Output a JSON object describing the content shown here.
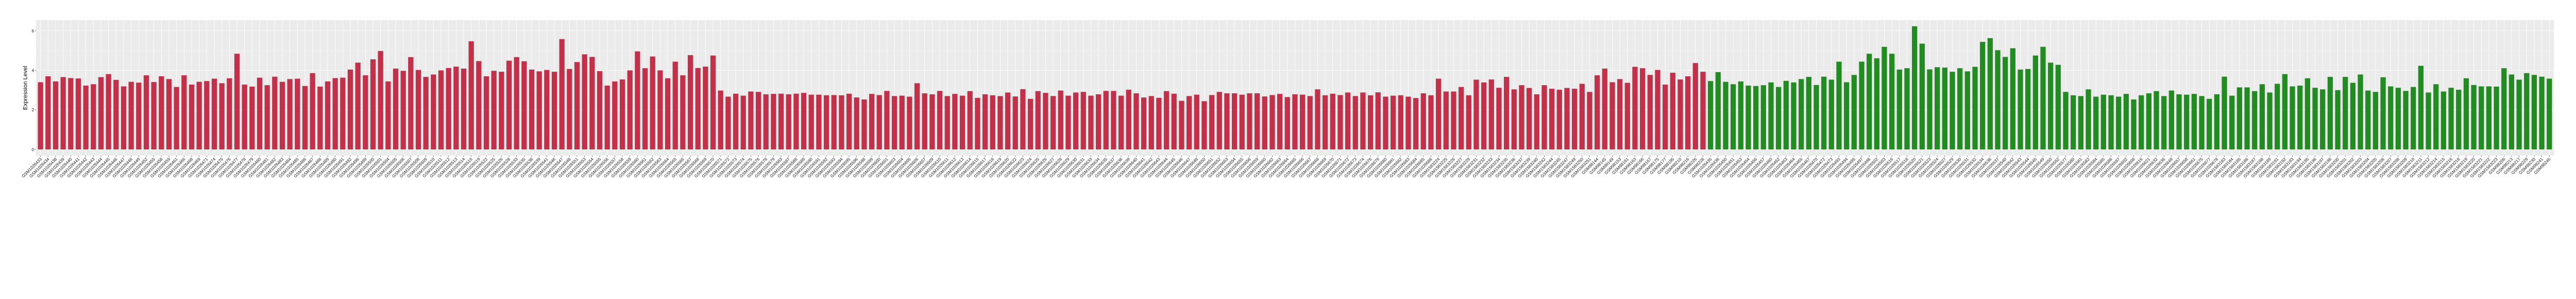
{
  "chart_data": {
    "type": "bar",
    "title": "",
    "xlabel": "",
    "ylabel": "Expression Level",
    "ylim": [
      -0.31,
      6.54
    ],
    "yticks": [
      0,
      2,
      4,
      6
    ],
    "grid": true,
    "legend": "none",
    "background": "#EBEBEB",
    "series": [
      {
        "color": "#C3304A",
        "categories": [
          "GSM1026433",
          "GSM1026434",
          "GSM1026438",
          "GSM1026439",
          "GSM1026440",
          "GSM1026441",
          "GSM1026442",
          "GSM1026443",
          "GSM1026444",
          "GSM1026445",
          "GSM1026446",
          "GSM1026447",
          "GSM1026448",
          "GSM1026449",
          "GSM1026452",
          "GSM1026455",
          "GSM1026458",
          "GSM1026459",
          "GSM1026461",
          "GSM1026466",
          "GSM1026468",
          "GSM1026469",
          "GSM1026471",
          "GSM1026474",
          "GSM1026475",
          "GSM1026476",
          "GSM1026477",
          "GSM1026478",
          "GSM1026479",
          "GSM1026480",
          "GSM1026481",
          "GSM1026482",
          "GSM1026483",
          "GSM1026484",
          "GSM1026485",
          "GSM1026486",
          "GSM1026487",
          "GSM1026488",
          "GSM1026489",
          "GSM1026490",
          "GSM1026491",
          "GSM1026492",
          "GSM1026496",
          "GSM1026499",
          "GSM1026500",
          "GSM1026501",
          "GSM1026504",
          "GSM1026505",
          "GSM1026506",
          "GSM1026507",
          "GSM1026508",
          "GSM1026509",
          "GSM1026510",
          "GSM1026511",
          "GSM1026512",
          "GSM1026513",
          "GSM1026514",
          "GSM1026515",
          "GSM1026519",
          "GSM1026522",
          "GSM1026525",
          "GSM1026526",
          "GSM1026528",
          "GSM1026533",
          "GSM1026535",
          "GSM1026538",
          "GSM1026539",
          "GSM1026541",
          "GSM1026546",
          "GSM1026547",
          "GSM1026548",
          "GSM1026551",
          "GSM1026553",
          "GSM1026554",
          "GSM1026555",
          "GSM1026556",
          "GSM1026557",
          "GSM1026558",
          "GSM1026559",
          "GSM1026560",
          "GSM1026561",
          "GSM1026562",
          "GSM1026563",
          "GSM1026564",
          "GSM1026565",
          "GSM1026566",
          "GSM1026567",
          "GSM1026568",
          "GSM1026569",
          "GSM1026570",
          "GSM1026571",
          "GSM1026572",
          "GSM1026573",
          "GSM1026574",
          "GSM1026575",
          "GSM1026576",
          "GSM1026578",
          "GSM1026579",
          "GSM1026583",
          "GSM1026587",
          "GSM1026588",
          "GSM1026589",
          "GSM1026590",
          "GSM1026591",
          "GSM1026592",
          "GSM1026593",
          "GSM1026594",
          "GSM1026595",
          "GSM1026596",
          "GSM1026598",
          "GSM1026599",
          "GSM1026600",
          "GSM1026601",
          "GSM1026603",
          "GSM1026604",
          "GSM1026605",
          "GSM1026606",
          "GSM1026607",
          "GSM1026609",
          "GSM1026610",
          "GSM1026611",
          "GSM1026612",
          "GSM1026613",
          "GSM1026614",
          "GSM1026615",
          "GSM1026617",
          "GSM1026618",
          "GSM1026619",
          "GSM1026620",
          "GSM1026622",
          "GSM1026623",
          "GSM1026624",
          "GSM1026625",
          "GSM1026626",
          "GSM1026627",
          "GSM1026628",
          "GSM1026629",
          "GSM1026630",
          "GSM1026631",
          "GSM1026633",
          "GSM1026634",
          "GSM1026635",
          "GSM1026637",
          "GSM1026638",
          "GSM1026639",
          "GSM1026640",
          "GSM1026641",
          "GSM1026642",
          "GSM1026643",
          "GSM1026644",
          "GSM1026645",
          "GSM1026646",
          "GSM1026647",
          "GSM1026648",
          "GSM1026650",
          "GSM1026651",
          "GSM1026652",
          "GSM1026653",
          "GSM1026654",
          "GSM1026655",
          "GSM1026656",
          "GSM1026659",
          "GSM1026660",
          "GSM1026662",
          "GSM1026663",
          "GSM1026664",
          "GSM1026665",
          "GSM1026666",
          "GSM1026667",
          "GSM1026668",
          "GSM1026669",
          "GSM1026670",
          "GSM1026671",
          "GSM1026672",
          "GSM1026673",
          "GSM1026674",
          "GSM1026676",
          "GSM1026679",
          "GSM1026680",
          "GSM1026681",
          "GSM1026682",
          "GSM1026683",
          "GSM1026684",
          "GSM1026685",
          "GSM1026686",
          "GSM1583224",
          "GSM1583225",
          "GSM1583226",
          "GSM1583227",
          "GSM1583229",
          "GSM1583231",
          "GSM1583232",
          "GSM1583233",
          "GSM1583234",
          "GSM1583235",
          "GSM1583236",
          "GSM1583237",
          "GSM1583239",
          "GSM1583240",
          "GSM1583242",
          "GSM1583244",
          "GSM1583245",
          "GSM1583247",
          "GSM1583249",
          "GSM1583250",
          "GSM1583251",
          "GSM98144",
          "GSM98145",
          "GSM98149",
          "GSM98153",
          "GSM98161",
          "GSM98163",
          "GSM98166",
          "GSM98167",
          "GSM98175",
          "GSM98177",
          "GSM98195",
          "GSM98210",
          "GSM98216",
          "GSM98226",
          "GSM98228"
        ],
        "values": [
          3.4,
          3.7,
          3.44,
          3.66,
          3.61,
          3.59,
          3.23,
          3.3,
          3.66,
          3.81,
          3.52,
          3.19,
          3.42,
          3.38,
          3.75,
          3.41,
          3.7,
          3.56,
          3.16,
          3.75,
          3.28,
          3.42,
          3.46,
          3.58,
          3.35,
          3.6,
          4.84,
          3.28,
          3.18,
          3.63,
          3.25,
          3.68,
          3.42,
          3.56,
          3.58,
          3.21,
          3.86,
          3.18,
          3.44,
          3.61,
          3.63,
          4.04,
          4.39,
          3.75,
          4.56,
          4.98,
          3.44,
          4.09,
          3.98,
          4.67,
          4.02,
          3.67,
          3.79,
          4.0,
          4.12,
          4.19,
          4.09,
          5.47,
          4.47,
          3.7,
          3.98,
          3.93,
          4.49,
          4.67,
          4.46,
          4.04,
          3.95,
          4.02,
          3.93,
          5.58,
          4.07,
          4.42,
          4.81,
          4.68,
          3.96,
          3.23,
          3.44,
          3.54,
          4.0,
          4.96,
          4.11,
          4.7,
          4.0,
          3.6,
          4.44,
          3.75,
          4.77,
          4.12,
          4.19,
          4.75,
          2.98,
          2.67,
          2.82,
          2.72,
          2.93,
          2.91,
          2.79,
          2.81,
          2.82,
          2.79,
          2.82,
          2.86,
          2.77,
          2.77,
          2.74,
          2.75,
          2.74,
          2.82,
          2.63,
          2.53,
          2.81,
          2.75,
          2.96,
          2.7,
          2.72,
          2.67,
          3.35,
          2.84,
          2.79,
          2.96,
          2.7,
          2.81,
          2.72,
          2.95,
          2.61,
          2.79,
          2.74,
          2.7,
          2.88,
          2.68,
          3.05,
          2.56,
          2.95,
          2.86,
          2.7,
          2.98,
          2.72,
          2.88,
          2.91,
          2.72,
          2.79,
          2.96,
          2.96,
          2.72,
          3.02,
          2.84,
          2.63,
          2.7,
          2.61,
          2.95,
          2.82,
          2.46,
          2.7,
          2.77,
          2.44,
          2.75,
          2.91,
          2.84,
          2.84,
          2.77,
          2.84,
          2.84,
          2.68,
          2.75,
          2.81,
          2.65,
          2.79,
          2.77,
          2.7,
          3.04,
          2.74,
          2.82,
          2.75,
          2.88,
          2.7,
          2.88,
          2.74,
          2.89,
          2.67,
          2.72,
          2.74,
          2.67,
          2.6,
          2.84,
          2.74,
          3.58,
          2.93,
          2.93,
          3.16,
          2.74,
          3.53,
          3.39,
          3.54,
          3.12,
          3.67,
          3.04,
          3.25,
          3.11,
          2.79,
          3.25,
          3.07,
          3.02,
          3.11,
          3.07,
          3.32,
          2.91,
          3.75,
          4.09,
          3.4,
          3.56,
          3.37,
          4.18,
          4.11,
          3.77,
          4.02,
          3.28,
          3.88,
          3.54,
          3.7,
          4.37,
          3.93
        ]
      },
      {
        "color": "#228B22",
        "categories": [
          "GSM1026435",
          "GSM1026436",
          "GSM1026450",
          "GSM1026451",
          "GSM1026453",
          "GSM1026454",
          "GSM1026456",
          "GSM1026457",
          "GSM1026460",
          "GSM1026462",
          "GSM1026463",
          "GSM1026464",
          "GSM1026465",
          "GSM1026467",
          "GSM1026470",
          "GSM1026472",
          "GSM1026473",
          "GSM1026493",
          "GSM1026494",
          "GSM1026495",
          "GSM1026497",
          "GSM1026498",
          "GSM1026502",
          "GSM1026503",
          "GSM1026516",
          "GSM1026517",
          "GSM1026518",
          "GSM1026520",
          "GSM1026521",
          "GSM1026523",
          "GSM1026524",
          "GSM1026527",
          "GSM1026529",
          "GSM1026530",
          "GSM1026531",
          "GSM1026532",
          "GSM1026534",
          "GSM1026536",
          "GSM1026537",
          "GSM1026540",
          "GSM1026542",
          "GSM1026543",
          "GSM1026544",
          "GSM1026545",
          "GSM1026549",
          "GSM1026550",
          "GSM1026552",
          "GSM1026577",
          "GSM1026580",
          "GSM1026581",
          "GSM1026582",
          "GSM1026584",
          "GSM1026585",
          "GSM1026586",
          "GSM1026597",
          "GSM1026602",
          "GSM1026608",
          "GSM1026616",
          "GSM1026621",
          "GSM1026632",
          "GSM1026636",
          "GSM1026649",
          "GSM1026657",
          "GSM1026658",
          "GSM1026661",
          "GSM1026675",
          "GSM1026677",
          "GSM1026678",
          "GSM1583183",
          "GSM1583184",
          "GSM1583185",
          "GSM1583186",
          "GSM1583187",
          "GSM1583188",
          "GSM1583189",
          "GSM1583191",
          "GSM1583192",
          "GSM1583193",
          "GSM1583194",
          "GSM1583195",
          "GSM1583196",
          "GSM1583197",
          "GSM1583198",
          "GSM1583200",
          "GSM1583201",
          "GSM1583202",
          "GSM1583203",
          "GSM1583204",
          "GSM1583205",
          "GSM1583206",
          "GSM1583207",
          "GSM1583208",
          "GSM1583209",
          "GSM1583210",
          "GSM1583211",
          "GSM1583212",
          "GSM1583214",
          "GSM1583215",
          "GSM1583216",
          "GSM1583218",
          "GSM1583219",
          "GSM1583220",
          "GSM1583221",
          "GSM1583222",
          "GSM1583223",
          "GSM98206",
          "GSM98213",
          "GSM98217",
          "GSM98229",
          "GSM98230",
          "GSM98241",
          "GSM98245"
        ],
        "values": [
          3.46,
          3.91,
          3.42,
          3.3,
          3.44,
          3.23,
          3.21,
          3.25,
          3.39,
          3.16,
          3.47,
          3.39,
          3.56,
          3.67,
          3.26,
          3.68,
          3.53,
          4.44,
          3.4,
          3.77,
          4.44,
          4.84,
          4.61,
          5.19,
          4.84,
          4.04,
          4.11,
          6.23,
          5.35,
          4.05,
          4.16,
          4.14,
          3.93,
          4.11,
          3.95,
          4.18,
          5.44,
          5.63,
          5.02,
          4.68,
          5.12,
          4.04,
          4.07,
          4.75,
          5.19,
          4.39,
          4.28,
          2.91,
          2.74,
          2.7,
          3.04,
          2.67,
          2.77,
          2.74,
          2.67,
          2.81,
          2.53,
          2.74,
          2.84,
          2.95,
          2.7,
          2.98,
          2.79,
          2.77,
          2.81,
          2.7,
          2.56,
          2.79,
          3.68,
          2.72,
          3.14,
          3.14,
          2.95,
          3.3,
          2.88,
          3.32,
          3.81,
          3.19,
          3.23,
          3.6,
          3.12,
          3.04,
          3.67,
          3.0,
          3.67,
          3.37,
          3.79,
          2.98,
          2.91,
          3.65,
          3.19,
          3.12,
          2.96,
          3.16,
          4.23,
          2.88,
          3.3,
          2.93,
          3.12,
          3.02,
          3.6,
          3.26,
          3.19,
          3.19,
          3.18,
          4.11,
          3.79,
          3.53,
          3.86,
          3.77,
          3.68,
          3.58
        ]
      }
    ]
  }
}
